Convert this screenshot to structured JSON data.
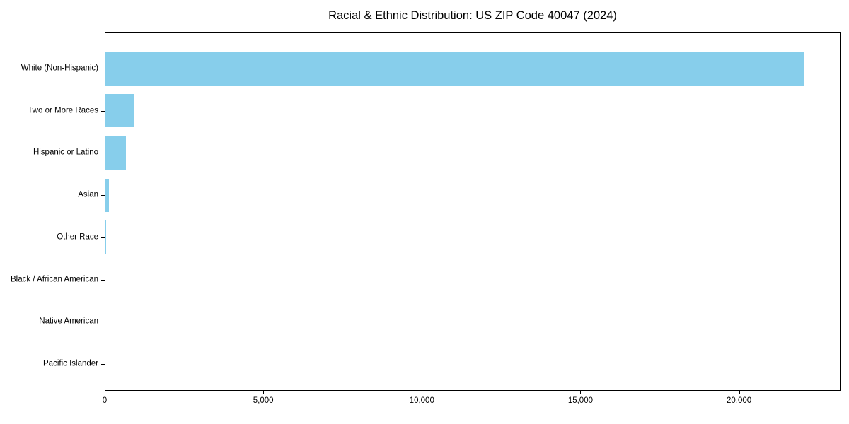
{
  "chart_data": {
    "type": "bar",
    "orientation": "horizontal",
    "title": "Racial & Ethnic Distribution: US ZIP Code 40047 (2024)",
    "categories": [
      "White (Non-Hispanic)",
      "Two or More Races",
      "Hispanic or Latino",
      "Asian",
      "Other Race",
      "Black / African American",
      "Native American",
      "Pacific Islander"
    ],
    "values": [
      22050,
      900,
      650,
      115,
      30,
      0,
      0,
      0
    ],
    "xlabel": "",
    "ylabel": "",
    "xlim": [
      0,
      23200
    ],
    "x_ticks": [
      0,
      5000,
      10000,
      15000,
      20000
    ],
    "x_tick_labels": [
      "0",
      "5,000",
      "10,000",
      "15,000",
      "20,000"
    ],
    "bar_color": "#87CEEB",
    "axis_color": "#000000",
    "background_color": "#ffffff",
    "grid": false,
    "legend_position": "none"
  }
}
